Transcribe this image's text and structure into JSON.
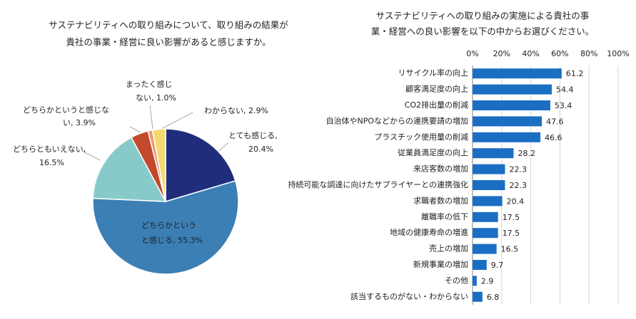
{
  "chart_data": [
    {
      "type": "pie",
      "title": [
        "サステナビリティへの取り組みについて、取り組みの結果が",
        "貴社の事業・経営に良い影響があると感じますか。"
      ],
      "categories": [
        "とても感じる",
        "どちらかというと感じる",
        "どちらともいえない",
        "どちらかというと感じない",
        "まったく感じない",
        "わからない"
      ],
      "values": [
        20.4,
        55.3,
        16.5,
        3.9,
        1.0,
        2.9
      ],
      "value_labels": [
        [
          "とても感じる,",
          "20.4%"
        ],
        [
          "どちらかという",
          "と感じる, 55.3%"
        ],
        [
          "どちらともいえない,",
          "16.5%"
        ],
        [
          "どちらかというと感じな",
          "い, 3.9%"
        ],
        [
          "まったく感じ",
          "ない, 1.0%"
        ],
        [
          "わからない, 2.9%"
        ]
      ],
      "colors": [
        "#1f2d7b",
        "#3b7fb5",
        "#88cac9",
        "#c2492b",
        "#ec9a72",
        "#f6d873"
      ]
    },
    {
      "type": "bar",
      "title": [
        "サステナビリティへの取り組みの実施による貴社の事",
        "業・経営への良い影響を以下の中からお選びください。"
      ],
      "categories": [
        "リサイクル率の向上",
        "顧客満足度の向上",
        "CO2排出量の削減",
        "自治体やNPOなどからの連携要請の増加",
        "プラスチック使用量の削減",
        "従業員満足度の向上",
        "来店客数の増加",
        "持続可能な調達に向けたサプライヤーとの連携強化",
        "求職者数の増加",
        "離職率の低下",
        "地域の健康寿命の増進",
        "売上の増加",
        "新規事業の増加",
        "その他",
        "該当するものがない・わからない"
      ],
      "values": [
        61.2,
        54.4,
        53.4,
        47.6,
        46.6,
        28.2,
        22.3,
        22.3,
        20.4,
        17.5,
        17.5,
        16.5,
        9.7,
        2.9,
        6.8
      ],
      "color": "#1b6fc3",
      "xlim": [
        0,
        100
      ],
      "xticks": [
        {
          "value": 0,
          "label": "0%"
        },
        {
          "value": 20,
          "label": "20%"
        },
        {
          "value": 40,
          "label": "40%"
        },
        {
          "value": 60,
          "label": "60%"
        },
        {
          "value": 80,
          "label": "80%"
        },
        {
          "value": 100,
          "label": "100%"
        }
      ],
      "grid": true
    }
  ]
}
